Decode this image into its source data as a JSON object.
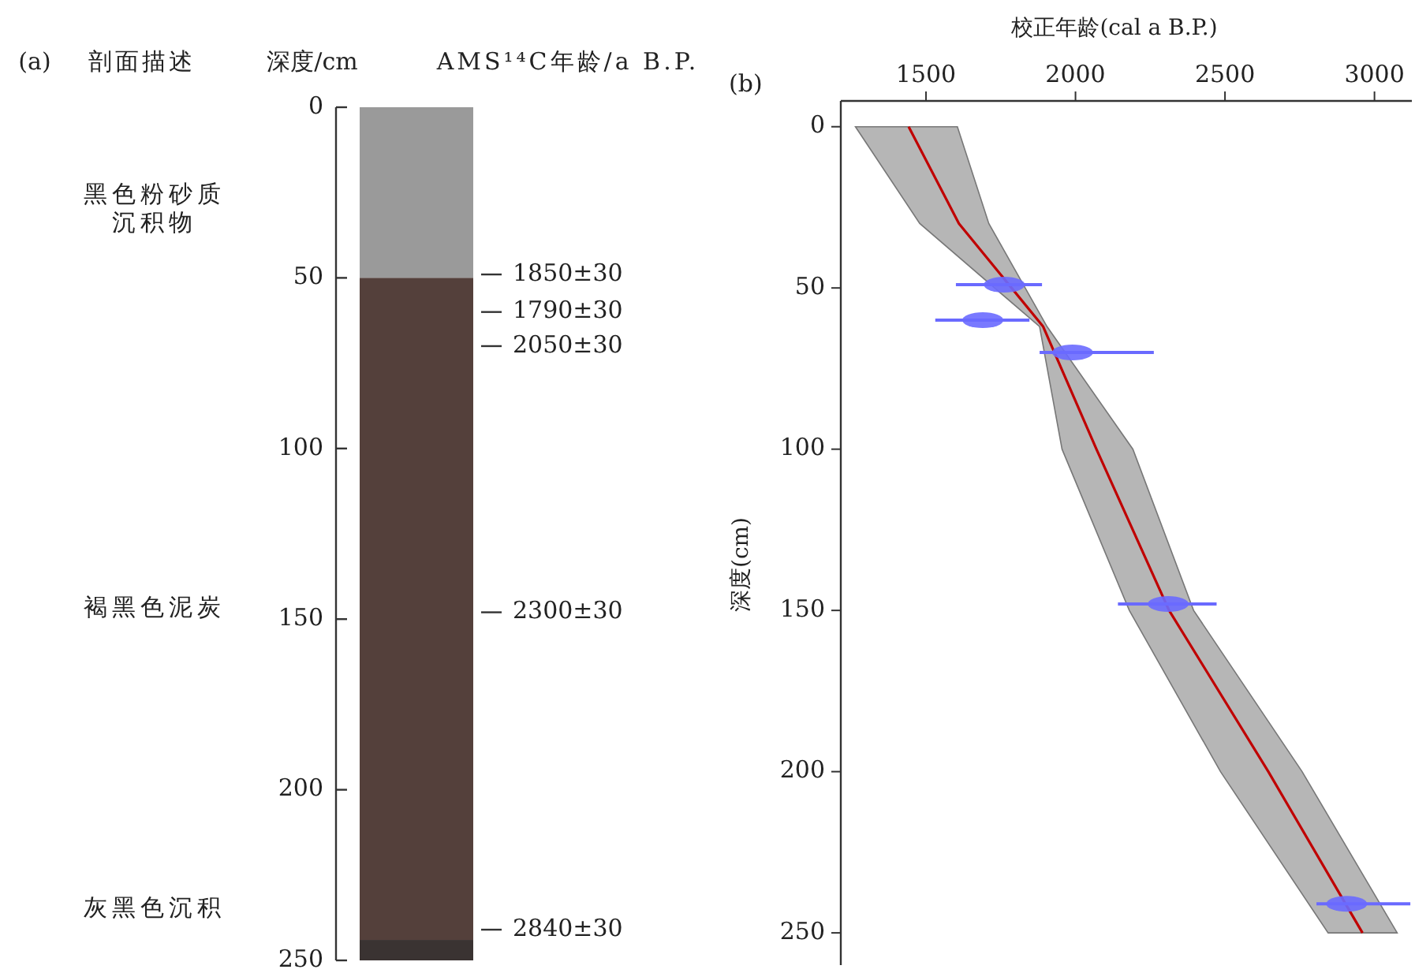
{
  "chart_data": [
    {
      "type": "bar",
      "ylabel": "深度/cm",
      "stacked": true,
      "categories": [
        null
      ],
      "tick_labels": "y",
      "series": [
        {
          "color": "#9a9a9a",
          "values": [
            50
          ]
        },
        {
          "color": "#54403b",
          "values": [
            194
          ]
        },
        {
          "color": "#3a3332",
          "values": [
            6
          ]
        }
      ],
      "ylim": [
        250,
        0
      ],
      "yticks": [
        0,
        50,
        100,
        150,
        200,
        250
      ],
      "grid": false,
      "annotations": [
        "(a)",
        "剖面描述",
        "AMS¹⁴C年龄/a B.P.",
        "黑色粉砂质沉积物",
        "褐黑色泥炭",
        "灰黑色沉积",
        "1850±30",
        "1790±30",
        "2050±30",
        "2300±30",
        "2840±30"
      ]
    },
    {
      "type": "line",
      "title": "(b)",
      "xlabel": "校正年龄(cal a B.P.)",
      "ylabel": "深度(cm)",
      "orientation": "horizontal",
      "xlim": [
        1215,
        3125
      ],
      "xticks": [
        1500,
        2000,
        2500,
        3000
      ],
      "ylim": [
        260,
        -8
      ],
      "yticks": [
        0,
        50,
        100,
        150,
        200,
        250
      ],
      "grid": false,
      "series": [
        {
          "type": "line",
          "color": "#c00000",
          "x": [
            0,
            30,
            62,
            100,
            150,
            200,
            250
          ],
          "values": [
            1442,
            1610,
            1892,
            2070,
            2313,
            2645,
            2960
          ],
          "lower": [
            1264,
            1479,
            1880,
            1955,
            2180,
            2485,
            2845
          ],
          "upper": [
            1605,
            1710,
            1905,
            2192,
            2395,
            2758,
            3076
          ]
        },
        {
          "type": "scatter",
          "color": "#6a6aff",
          "x": [
            49,
            60,
            70,
            148,
            241
          ],
          "values": [
            1762,
            1690,
            1990,
            2310,
            2907
          ],
          "errors": [
            [
              1600,
              1888
            ],
            [
              1531,
              1846
            ],
            [
              1880,
              2262
            ],
            [
              2142,
              2472
            ],
            [
              2806,
              3120
            ]
          ]
        }
      ]
    }
  ]
}
